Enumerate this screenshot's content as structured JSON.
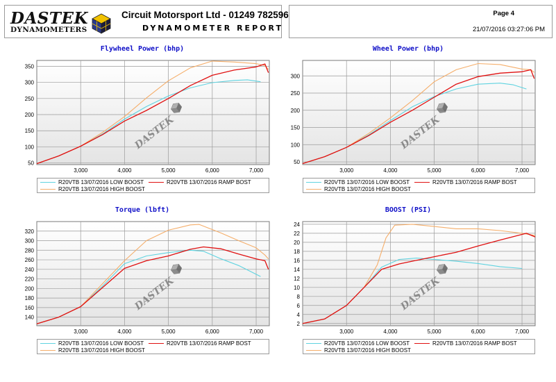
{
  "header": {
    "logo_word": "DASTEK",
    "logo_sub": "DYNAMOMETERS",
    "company": "Circuit Motorsport Ltd - 01249 782596",
    "report_title": "DYNAMOMETER REPORT",
    "page": "Page 4",
    "timestamp": "21/07/2016 03:27:06 PM"
  },
  "watermark": "DASTEK",
  "colors": {
    "low": "#5fd3e0",
    "ramp": "#e01010",
    "high": "#f5ae6a",
    "title": "#1010c8"
  },
  "legend": {
    "low": "R20VTB 13/07/2016 LOW BOOST",
    "ramp": "R20VTB 13/07/2016 RAMP BOST",
    "high": "R20VTB 13/07/2016 HIGH BOOST"
  },
  "chart_data": [
    {
      "type": "line",
      "title": "Flywheel Power (bhp)",
      "xlim": [
        2000,
        7300
      ],
      "ylim": [
        45,
        368
      ],
      "xticks": [
        3000,
        4000,
        5000,
        6000,
        7000
      ],
      "xtick_labels": [
        "3,000",
        "4,000",
        "5,000",
        "6,000",
        "7,000"
      ],
      "yticks": [
        50,
        100,
        150,
        200,
        250,
        300,
        350
      ],
      "grid": true,
      "legend_position": "bottom",
      "series": [
        {
          "name": "R20VTB 13/07/2016 LOW BOOST",
          "key": "low",
          "points": [
            [
              2000,
              48
            ],
            [
              2500,
              72
            ],
            [
              3000,
              102
            ],
            [
              3500,
              140
            ],
            [
              4000,
              186
            ],
            [
              4500,
              225
            ],
            [
              5000,
              258
            ],
            [
              5500,
              283
            ],
            [
              6000,
              299
            ],
            [
              6500,
              306
            ],
            [
              6800,
              308
            ],
            [
              7100,
              302
            ]
          ]
        },
        {
          "name": "R20VTB 13/07/2016 RAMP BOST",
          "key": "ramp",
          "points": [
            [
              2000,
              48
            ],
            [
              2500,
              72
            ],
            [
              3000,
              102
            ],
            [
              3500,
              138
            ],
            [
              4000,
              180
            ],
            [
              4500,
              213
            ],
            [
              5000,
              250
            ],
            [
              5500,
              290
            ],
            [
              6000,
              322
            ],
            [
              6500,
              338
            ],
            [
              7000,
              348
            ],
            [
              7200,
              357
            ],
            [
              7280,
              330
            ]
          ]
        },
        {
          "name": "R20VTB 13/07/2016 HIGH BOOST",
          "key": "high",
          "points": [
            [
              2000,
              48
            ],
            [
              2500,
              72
            ],
            [
              3000,
              102
            ],
            [
              3500,
              145
            ],
            [
              4000,
              194
            ],
            [
              4500,
              252
            ],
            [
              5000,
              305
            ],
            [
              5500,
              345
            ],
            [
              6000,
              366
            ],
            [
              6500,
              363
            ],
            [
              7000,
              358
            ],
            [
              7200,
              352
            ],
            [
              7280,
              340
            ]
          ]
        }
      ]
    },
    {
      "type": "line",
      "title": "Wheel Power (bhp)",
      "xlim": [
        2000,
        7300
      ],
      "ylim": [
        42,
        345
      ],
      "xticks": [
        3000,
        4000,
        5000,
        6000,
        7000
      ],
      "xtick_labels": [
        "3,000",
        "4,000",
        "5,000",
        "6,000",
        "7,000"
      ],
      "yticks": [
        50,
        100,
        150,
        200,
        250,
        300
      ],
      "grid": true,
      "legend_position": "bottom",
      "series": [
        {
          "name": "R20VTB 13/07/2016 LOW BOOST",
          "key": "low",
          "points": [
            [
              2000,
              45
            ],
            [
              2500,
              65
            ],
            [
              3000,
              92
            ],
            [
              3500,
              128
            ],
            [
              4000,
              170
            ],
            [
              4500,
              210
            ],
            [
              5000,
              240
            ],
            [
              5500,
              262
            ],
            [
              6000,
              276
            ],
            [
              6500,
              279
            ],
            [
              6800,
              274
            ],
            [
              7100,
              262
            ]
          ]
        },
        {
          "name": "R20VTB 13/07/2016 RAMP BOST",
          "key": "ramp",
          "points": [
            [
              2000,
              45
            ],
            [
              2500,
              65
            ],
            [
              3000,
              92
            ],
            [
              3500,
              126
            ],
            [
              4000,
              165
            ],
            [
              4500,
              200
            ],
            [
              5000,
              238
            ],
            [
              5500,
              276
            ],
            [
              6000,
              298
            ],
            [
              6500,
              308
            ],
            [
              7000,
              312
            ],
            [
              7200,
              318
            ],
            [
              7280,
              292
            ]
          ]
        },
        {
          "name": "R20VTB 13/07/2016 HIGH BOOST",
          "key": "high",
          "points": [
            [
              2000,
              45
            ],
            [
              2500,
              65
            ],
            [
              3000,
              92
            ],
            [
              3500,
              132
            ],
            [
              4000,
              178
            ],
            [
              4500,
              228
            ],
            [
              5000,
              283
            ],
            [
              5500,
              318
            ],
            [
              6000,
              336
            ],
            [
              6500,
              333
            ],
            [
              7000,
              320
            ],
            [
              7200,
              318
            ],
            [
              7280,
              310
            ]
          ]
        }
      ]
    },
    {
      "type": "line",
      "title": "Torque (lbft)",
      "xlim": [
        2000,
        7300
      ],
      "ylim": [
        122,
        340
      ],
      "xticks": [
        3000,
        4000,
        5000,
        6000,
        7000
      ],
      "xtick_labels": [
        "3,000",
        "4,000",
        "5,000",
        "6,000",
        "7,000"
      ],
      "yticks": [
        140,
        160,
        180,
        200,
        220,
        240,
        260,
        280,
        300,
        320
      ],
      "grid": true,
      "legend_position": "bottom",
      "series": [
        {
          "name": "R20VTB 13/07/2016 LOW BOOST",
          "key": "low",
          "points": [
            [
              2000,
              126
            ],
            [
              2500,
              140
            ],
            [
              3000,
              162
            ],
            [
              3500,
              205
            ],
            [
              4000,
              252
            ],
            [
              4500,
              268
            ],
            [
              5000,
              275
            ],
            [
              5500,
              280
            ],
            [
              5800,
              278
            ],
            [
              6200,
              262
            ],
            [
              6600,
              248
            ],
            [
              7100,
              225
            ]
          ]
        },
        {
          "name": "R20VTB 13/07/2016 RAMP BOST",
          "key": "ramp",
          "points": [
            [
              2000,
              126
            ],
            [
              2500,
              140
            ],
            [
              3000,
              162
            ],
            [
              3500,
              202
            ],
            [
              4000,
              242
            ],
            [
              4500,
              258
            ],
            [
              5000,
              268
            ],
            [
              5500,
              282
            ],
            [
              5800,
              287
            ],
            [
              6200,
              283
            ],
            [
              6600,
              272
            ],
            [
              7000,
              262
            ],
            [
              7200,
              258
            ],
            [
              7280,
              240
            ]
          ]
        },
        {
          "name": "R20VTB 13/07/2016 HIGH BOOST",
          "key": "high",
          "points": [
            [
              2000,
              126
            ],
            [
              2500,
              140
            ],
            [
              3000,
              162
            ],
            [
              3500,
              210
            ],
            [
              4000,
              258
            ],
            [
              4500,
              300
            ],
            [
              5000,
              322
            ],
            [
              5500,
              333
            ],
            [
              5700,
              334
            ],
            [
              6200,
              316
            ],
            [
              6600,
              300
            ],
            [
              7000,
              285
            ],
            [
              7200,
              270
            ],
            [
              7280,
              262
            ]
          ]
        }
      ]
    },
    {
      "type": "line",
      "title": "BOOST (PSI)",
      "xlim": [
        2000,
        7300
      ],
      "ylim": [
        1.5,
        24.6
      ],
      "xticks": [
        3000,
        4000,
        5000,
        6000,
        7000
      ],
      "xtick_labels": [
        "3,000",
        "4,000",
        "5,000",
        "6,000",
        "7,000"
      ],
      "yticks": [
        2,
        4,
        6,
        8,
        10,
        12,
        14,
        16,
        18,
        20,
        22,
        24
      ],
      "grid": true,
      "legend_position": "bottom",
      "series": [
        {
          "name": "R20VTB 13/07/2016 LOW BOOST",
          "key": "low",
          "points": [
            [
              2000,
              2
            ],
            [
              2500,
              3
            ],
            [
              3000,
              6
            ],
            [
              3400,
              10
            ],
            [
              3800,
              14.5
            ],
            [
              4200,
              16.2
            ],
            [
              4600,
              16.5
            ],
            [
              5000,
              16.2
            ],
            [
              5500,
              15.8
            ],
            [
              6000,
              15.3
            ],
            [
              6500,
              14.6
            ],
            [
              7000,
              14.2
            ]
          ]
        },
        {
          "name": "R20VTB 13/07/2016 RAMP BOST",
          "key": "ramp",
          "points": [
            [
              2000,
              2
            ],
            [
              2500,
              3
            ],
            [
              3000,
              6
            ],
            [
              3400,
              10
            ],
            [
              3800,
              14
            ],
            [
              4200,
              15.2
            ],
            [
              4600,
              16
            ],
            [
              5000,
              16.8
            ],
            [
              5500,
              17.8
            ],
            [
              6000,
              19.2
            ],
            [
              6500,
              20.5
            ],
            [
              6900,
              21.5
            ],
            [
              7100,
              22
            ],
            [
              7300,
              21.2
            ]
          ]
        },
        {
          "name": "R20VTB 13/07/2016 HIGH BOOST",
          "key": "high",
          "points": [
            [
              2000,
              2
            ],
            [
              2500,
              3
            ],
            [
              3000,
              6
            ],
            [
              3400,
              10
            ],
            [
              3700,
              15
            ],
            [
              3900,
              21
            ],
            [
              4100,
              23.8
            ],
            [
              4500,
              24
            ],
            [
              5000,
              23.5
            ],
            [
              5500,
              23
            ],
            [
              6000,
              23
            ],
            [
              6500,
              22.6
            ],
            [
              7000,
              22
            ],
            [
              7300,
              21.5
            ]
          ]
        }
      ]
    }
  ]
}
